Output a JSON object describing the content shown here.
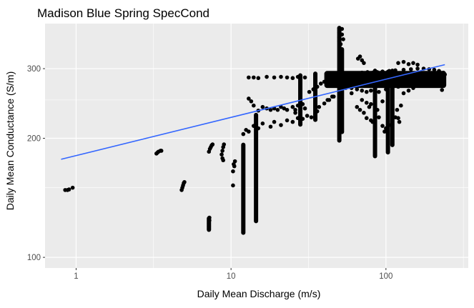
{
  "chart_data": {
    "type": "scatter",
    "title": "Madison Blue Spring SpecCond",
    "xlabel": "Daily Mean Discharge (m/s)",
    "ylabel": "Daily Mean Conductance (S/m)",
    "x_scale": "log10",
    "y_scale": "log10",
    "xlim": [
      0.63,
      340
    ],
    "ylim": [
      94,
      390
    ],
    "x_ticks": [
      {
        "value": 1,
        "label": "1"
      },
      {
        "value": 10,
        "label": "10"
      },
      {
        "value": 100,
        "label": "100"
      }
    ],
    "y_ticks": [
      {
        "value": 100,
        "label": "100"
      },
      {
        "value": 200,
        "label": "200"
      },
      {
        "value": 300,
        "label": "300"
      }
    ],
    "x_minor_ticks": [
      0.316,
      3.16,
      31.6,
      316
    ],
    "y_minor_ticks": [
      150,
      250
    ],
    "grid": true,
    "panel_color": "#ebebeb",
    "grid_color": "#ffffff",
    "point_color": "#000000",
    "trend_color": "#3366ff",
    "trend_line": {
      "x": [
        0.8,
        240
      ],
      "y": [
        177,
        307
      ]
    },
    "series": [
      {
        "name": "daily observations",
        "points": [
          [
            0.85,
            148
          ],
          [
            0.88,
            148
          ],
          [
            0.9,
            148.5
          ],
          [
            0.95,
            150
          ],
          [
            3.3,
            183
          ],
          [
            3.35,
            184
          ],
          [
            3.4,
            185
          ],
          [
            3.5,
            186
          ],
          [
            3.55,
            186
          ],
          [
            4.8,
            148
          ],
          [
            4.85,
            150
          ],
          [
            4.9,
            152
          ],
          [
            4.95,
            154
          ],
          [
            5.0,
            155
          ],
          [
            7.2,
            185
          ],
          [
            7.3,
            188
          ],
          [
            7.4,
            190
          ],
          [
            7.5,
            192
          ],
          [
            7.6,
            193
          ],
          [
            7.2,
            118
          ],
          [
            7.2,
            120
          ],
          [
            7.2,
            122
          ],
          [
            7.25,
            124
          ],
          [
            7.25,
            126
          ],
          [
            8.7,
            182
          ],
          [
            8.8,
            186
          ],
          [
            8.9,
            190
          ],
          [
            9.0,
            193
          ],
          [
            8.8,
            178
          ],
          [
            8.9,
            176
          ],
          [
            10.3,
            152
          ],
          [
            10.3,
            165
          ],
          [
            10.4,
            172
          ],
          [
            10.5,
            170
          ],
          [
            10.6,
            175
          ],
          [
            13.0,
            285
          ],
          [
            14.0,
            285
          ],
          [
            15.0,
            284
          ],
          [
            17.0,
            286
          ],
          [
            19.0,
            285
          ],
          [
            21.0,
            286
          ],
          [
            23.0,
            285
          ],
          [
            25.0,
            284
          ],
          [
            27.0,
            286
          ],
          [
            30.0,
            285
          ],
          [
            13.0,
            252
          ],
          [
            13.5,
            248
          ],
          [
            14.0,
            242
          ],
          [
            15.0,
            235
          ],
          [
            16.0,
            240
          ],
          [
            17.0,
            238
          ],
          [
            18.0,
            236
          ],
          [
            19.0,
            238
          ],
          [
            20.0,
            236
          ],
          [
            21.0,
            240
          ],
          [
            22.0,
            238
          ],
          [
            23.0,
            236
          ],
          [
            25.0,
            240
          ],
          [
            27.0,
            242
          ],
          [
            29.0,
            244
          ],
          [
            12.0,
            205
          ],
          [
            12.5,
            210
          ],
          [
            13.0,
            208
          ],
          [
            14.0,
            215
          ],
          [
            15.0,
            212
          ],
          [
            16.0,
            218
          ],
          [
            18.0,
            214
          ],
          [
            19.0,
            220
          ],
          [
            21.0,
            216
          ],
          [
            23.0,
            222
          ],
          [
            25.0,
            220
          ],
          [
            27.0,
            225
          ],
          [
            29.0,
            224
          ],
          [
            31.0,
            228
          ],
          [
            33.0,
            226
          ],
          [
            35.0,
            230
          ],
          [
            37.0,
            240
          ],
          [
            40.0,
            245
          ],
          [
            43.0,
            250
          ],
          [
            46.0,
            255
          ],
          [
            32.0,
            262
          ],
          [
            34.0,
            266
          ],
          [
            36.0,
            270
          ],
          [
            38.0,
            275
          ],
          [
            40.0,
            278
          ],
          [
            26.0,
            232
          ],
          [
            26.0,
            236
          ],
          [
            28.0,
            234
          ],
          [
            30.0,
            238
          ],
          [
            36.0,
            234
          ],
          [
            45.0,
            285
          ],
          [
            48.0,
            288
          ],
          [
            52.0,
            290
          ],
          [
            56.0,
            292
          ],
          [
            60.0,
            291
          ],
          [
            65.0,
            292
          ],
          [
            70.0,
            293
          ],
          [
            76.0,
            294
          ],
          [
            82.0,
            293
          ],
          [
            88.0,
            294
          ],
          [
            95.0,
            295
          ],
          [
            105.0,
            296
          ],
          [
            115.0,
            297
          ],
          [
            130.0,
            298
          ],
          [
            145.0,
            299
          ],
          [
            160.0,
            300
          ],
          [
            175.0,
            300
          ],
          [
            190.0,
            299
          ],
          [
            205.0,
            298
          ],
          [
            220.0,
            296
          ],
          [
            60.0,
            268
          ],
          [
            65.0,
            266
          ],
          [
            70.0,
            264
          ],
          [
            75.0,
            262
          ],
          [
            80.0,
            264
          ],
          [
            85.0,
            266
          ],
          [
            90.0,
            262
          ],
          [
            100.0,
            266
          ],
          [
            110.0,
            268
          ],
          [
            120.0,
            270
          ],
          [
            50.0,
            272
          ],
          [
            55.0,
            268
          ],
          [
            60.0,
            260
          ],
          [
            45.0,
            255
          ],
          [
            42.0,
            250
          ],
          [
            70.0,
            250
          ],
          [
            75.0,
            246
          ],
          [
            80.0,
            244
          ],
          [
            85.0,
            250
          ],
          [
            95.0,
            248
          ],
          [
            65.0,
            240
          ],
          [
            68.0,
            236
          ],
          [
            72.0,
            232
          ],
          [
            78.0,
            240
          ],
          [
            88.0,
            236
          ],
          [
            75.0,
            225
          ],
          [
            80.0,
            222
          ],
          [
            82.0,
            220
          ],
          [
            90.0,
            226
          ],
          [
            95.0,
            215
          ],
          [
            100.0,
            212
          ],
          [
            105.0,
            216
          ],
          [
            110.0,
            222
          ],
          [
            98.0,
            208
          ],
          [
            101.0,
            210
          ],
          [
            110.0,
            230
          ],
          [
            115.0,
            226
          ],
          [
            118.0,
            236
          ],
          [
            120.0,
            225
          ],
          [
            122.0,
            220
          ],
          [
            125.0,
            242
          ],
          [
            130.0,
            260
          ],
          [
            140.0,
            264
          ],
          [
            150.0,
            268
          ],
          [
            180.0,
            272
          ],
          [
            230.0,
            265
          ],
          [
            240.0,
            290
          ],
          [
            235.0,
            293
          ],
          [
            228.0,
            291
          ],
          [
            50.0,
            380
          ],
          [
            50.0,
            370
          ],
          [
            50.0,
            360
          ],
          [
            50.0,
            352
          ],
          [
            51.0,
            346
          ],
          [
            52.0,
            378
          ],
          [
            52.0,
            366
          ],
          [
            53.0,
            356
          ],
          [
            66.0,
            318
          ],
          [
            68.0,
            322
          ],
          [
            70.0,
            315
          ],
          [
            72.0,
            310
          ],
          [
            120.0,
            310
          ],
          [
            130.0,
            312
          ],
          [
            140.0,
            308
          ],
          [
            150.0,
            310
          ],
          [
            160.0,
            307
          ]
        ]
      }
    ],
    "vertical_clusters": [
      {
        "x": 12.0,
        "y_min": 114,
        "y_max": 195
      },
      {
        "x": 14.5,
        "y_min": 122,
        "y_max": 232
      },
      {
        "x": 7.2,
        "y_min": 116,
        "y_max": 127
      },
      {
        "x": 50.0,
        "y_min": 195,
        "y_max": 385
      },
      {
        "x": 52.0,
        "y_min": 205,
        "y_max": 340
      },
      {
        "x": 85.0,
        "y_min": 178,
        "y_max": 300
      },
      {
        "x": 103.0,
        "y_min": 182,
        "y_max": 298
      },
      {
        "x": 110.0,
        "y_min": 190,
        "y_max": 300
      },
      {
        "x": 28.0,
        "y_min": 214,
        "y_max": 292
      },
      {
        "x": 35.0,
        "y_min": 220,
        "y_max": 295
      }
    ],
    "dense_band": [
      {
        "x_min": 40,
        "x_max": 245,
        "y_min": 268,
        "y_max": 296
      }
    ]
  }
}
